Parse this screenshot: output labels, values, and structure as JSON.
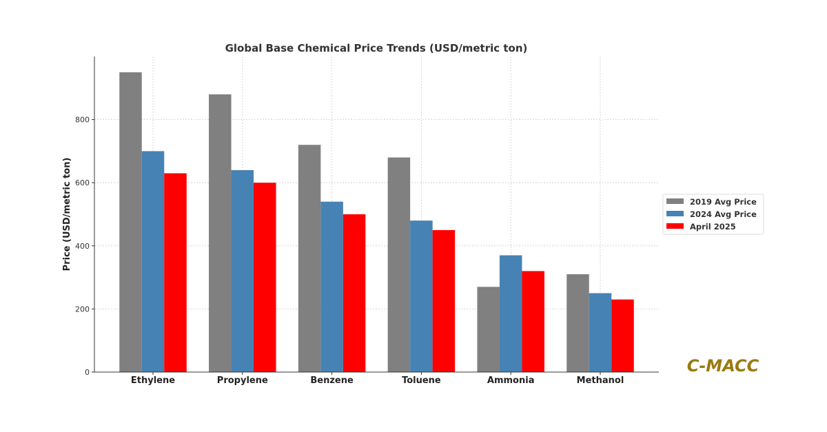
{
  "chart_data": {
    "type": "bar",
    "title": "Global Base Chemical Price Trends (USD/metric ton)",
    "xlabel": "",
    "ylabel": "Price (USD/metric ton)",
    "categories": [
      "Ethylene",
      "Propylene",
      "Benzene",
      "Toluene",
      "Ammonia",
      "Methanol"
    ],
    "series": [
      {
        "name": "2019 Avg Price",
        "color": "#808080",
        "values": [
          950,
          880,
          720,
          680,
          270,
          310
        ]
      },
      {
        "name": "2024 Avg Price",
        "color": "#4682b4",
        "values": [
          700,
          640,
          540,
          480,
          370,
          250
        ]
      },
      {
        "name": "April 2025",
        "color": "#ff0000",
        "values": [
          630,
          600,
          500,
          450,
          320,
          230
        ]
      }
    ],
    "ylim": [
      0,
      1000
    ],
    "yticks": [
      0,
      200,
      400,
      600,
      800
    ],
    "grid": true,
    "legend_position": "right"
  },
  "watermark": "C-MACC"
}
